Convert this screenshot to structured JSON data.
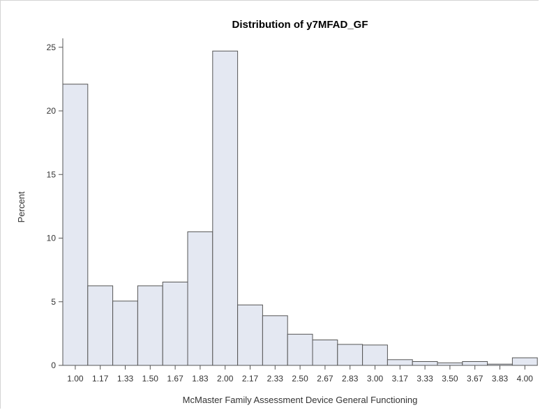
{
  "chart_data": {
    "type": "bar",
    "title": "Distribution of y7MFAD_GF",
    "xlabel": "McMaster Family Assessment Device General Functioning",
    "ylabel": "Percent",
    "categories": [
      "1.00",
      "1.17",
      "1.33",
      "1.50",
      "1.67",
      "1.83",
      "2.00",
      "2.17",
      "2.33",
      "2.50",
      "2.67",
      "2.83",
      "3.00",
      "3.17",
      "3.33",
      "3.50",
      "3.67",
      "3.83",
      "4.00"
    ],
    "values": [
      22.1,
      6.25,
      5.05,
      6.25,
      6.55,
      10.5,
      24.7,
      4.75,
      3.9,
      2.45,
      2.0,
      1.65,
      1.6,
      0.45,
      0.3,
      0.2,
      0.3,
      0.1,
      0.6
    ],
    "yticks": [
      0,
      5,
      10,
      15,
      20,
      25
    ],
    "ylim": [
      0,
      25.7
    ],
    "grid": false,
    "bar_fill": "#e4e8f2",
    "bar_stroke": "#555555"
  }
}
